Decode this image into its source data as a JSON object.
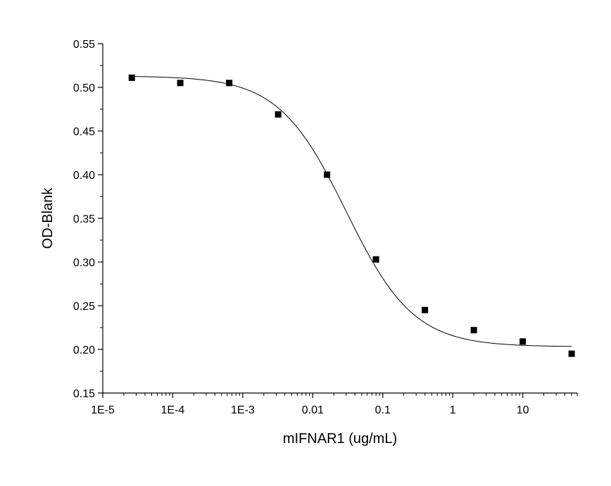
{
  "chart_data": {
    "type": "scatter",
    "title": "",
    "xlabel": "mIFNAR1 (ug/mL)",
    "ylabel": "OD-Blank",
    "x_scale": "log",
    "xlim": [
      1e-05,
      60
    ],
    "ylim": [
      0.15,
      0.55
    ],
    "grid": false,
    "legend": "none",
    "x_tick_values": [
      1e-05,
      0.0001,
      0.001,
      0.01,
      0.1,
      1,
      10
    ],
    "x_tick_labels": [
      "1E-5",
      "1E-4",
      "1E-3",
      "0.01",
      "0.1",
      "1",
      "10"
    ],
    "y_tick_values": [
      0.15,
      0.2,
      0.25,
      0.3,
      0.35,
      0.4,
      0.45,
      0.5,
      0.55
    ],
    "y_tick_labels": [
      "0.15",
      "0.20",
      "0.25",
      "0.30",
      "0.35",
      "0.40",
      "0.45",
      "0.50",
      "0.55"
    ],
    "series": [
      {
        "kind": "points",
        "marker": "square",
        "color": "#000000",
        "x": [
          2.6e-05,
          0.000128,
          0.00064,
          0.0032,
          0.016,
          0.08,
          0.4,
          2,
          10,
          50
        ],
        "y": [
          0.511,
          0.505,
          0.505,
          0.469,
          0.4,
          0.303,
          0.245,
          0.222,
          0.209,
          0.195
        ]
      },
      {
        "kind": "fit",
        "model": "4PL",
        "color": "#000000",
        "top": 0.513,
        "bottom": 0.203,
        "ec50": 0.03,
        "hill": 0.9,
        "x_range": [
          2.6e-05,
          50
        ]
      }
    ]
  }
}
